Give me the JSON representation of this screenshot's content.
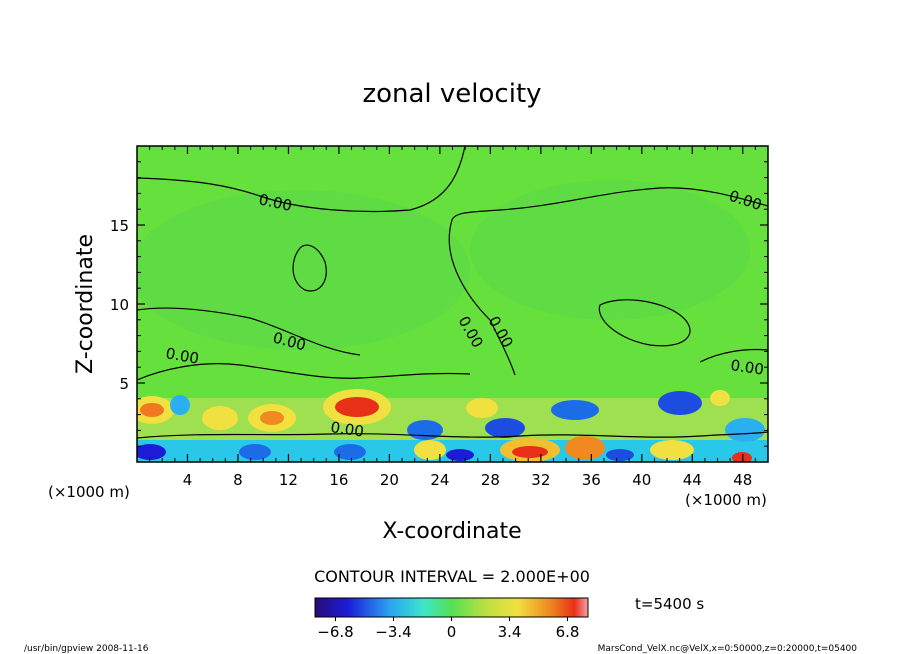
{
  "chart_data": {
    "type": "heatmap",
    "title": "zonal velocity",
    "xlabel": "X-coordinate",
    "ylabel": "Z-coordinate",
    "x_unit_left": "(×1000 m)",
    "x_unit_right": "(×1000 m)",
    "xlim": [
      0,
      50
    ],
    "ylim": [
      0,
      20
    ],
    "x_ticks": [
      4,
      8,
      12,
      16,
      20,
      24,
      28,
      32,
      36,
      40,
      44,
      48
    ],
    "y_ticks": [
      5,
      10,
      15
    ],
    "contour_labels": [
      "0.00",
      "0.00",
      "0.00",
      "0.00",
      "0.00",
      "0.00",
      "0.00",
      "0.00"
    ],
    "contour_interval_text": "CONTOUR INTERVAL = 2.000E+00",
    "time_text": "t=5400 s",
    "colorbar": {
      "ticks": [
        "−6.8",
        "−3.4",
        "0",
        "3.4",
        "6.8"
      ],
      "tick_values": [
        -6.8,
        -3.4,
        0,
        3.4,
        6.8
      ],
      "range": [
        -8,
        8
      ]
    },
    "footer_left": "/usr/bin/gpview   2008-11-16",
    "footer_right": "MarsCond_VelX.nc@VelX,x=0:50000,z=0:20000,t=05400"
  }
}
